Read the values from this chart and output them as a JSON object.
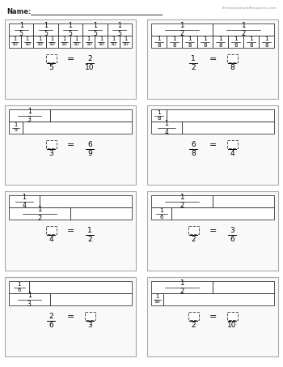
{
  "title": "Name:",
  "watermark": "FreeEducationalResources.com",
  "bg_color": "#ffffff",
  "panels": [
    {
      "id": 0,
      "col": 0,
      "row": 0,
      "strip1_den": 5,
      "strip1_count": 5,
      "strip2_den": 10,
      "strip2_count": 10,
      "eq_left_num": "",
      "eq_left_den": "5",
      "eq_right_num": "2",
      "eq_right_den": "10",
      "left_blank": true,
      "right_blank": false
    },
    {
      "id": 1,
      "col": 1,
      "row": 0,
      "strip1_den": 2,
      "strip1_count": 2,
      "strip2_den": 8,
      "strip2_count": 8,
      "eq_left_num": "1",
      "eq_left_den": "2",
      "eq_right_num": "",
      "eq_right_den": "8",
      "left_blank": false,
      "right_blank": true
    },
    {
      "id": 2,
      "col": 0,
      "row": 1,
      "strip1_den": 3,
      "strip1_count": 1,
      "strip2_den": 9,
      "strip2_count": 1,
      "eq_left_num": "",
      "eq_left_den": "3",
      "eq_right_num": "6",
      "eq_right_den": "9",
      "left_blank": true,
      "right_blank": false
    },
    {
      "id": 3,
      "col": 1,
      "row": 1,
      "strip1_den": 8,
      "strip1_count": 1,
      "strip2_den": 4,
      "strip2_count": 1,
      "eq_left_num": "6",
      "eq_left_den": "8",
      "eq_right_num": "",
      "eq_right_den": "4",
      "left_blank": false,
      "right_blank": true
    },
    {
      "id": 4,
      "col": 0,
      "row": 2,
      "strip1_den": 4,
      "strip1_count": 1,
      "strip2_den": 2,
      "strip2_count": 1,
      "eq_left_num": "",
      "eq_left_den": "4",
      "eq_right_num": "1",
      "eq_right_den": "2",
      "left_blank": true,
      "right_blank": false
    },
    {
      "id": 5,
      "col": 1,
      "row": 2,
      "strip1_den": 2,
      "strip1_count": 1,
      "strip2_den": 6,
      "strip2_count": 1,
      "eq_left_num": "",
      "eq_left_den": "2",
      "eq_right_num": "3",
      "eq_right_den": "6",
      "left_blank": true,
      "right_blank": false
    },
    {
      "id": 6,
      "col": 0,
      "row": 3,
      "strip1_den": 6,
      "strip1_count": 1,
      "strip2_den": 3,
      "strip2_count": 1,
      "eq_left_num": "2",
      "eq_left_den": "6",
      "eq_right_num": "",
      "eq_right_den": "3",
      "left_blank": false,
      "right_blank": true
    },
    {
      "id": 7,
      "col": 1,
      "row": 3,
      "strip1_den": 2,
      "strip1_count": 1,
      "strip2_den": 10,
      "strip2_count": 1,
      "eq_left_num": "",
      "eq_left_den": "2",
      "eq_right_num": "",
      "eq_right_den": "10",
      "left_blank": true,
      "right_blank": true
    }
  ]
}
